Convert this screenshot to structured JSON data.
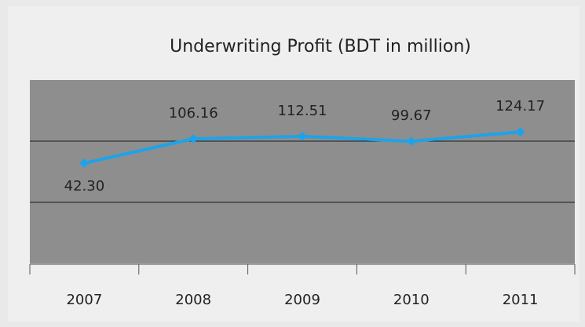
{
  "chart_data": {
    "type": "line",
    "title": "Underwriting Profit (BDT in million)",
    "categories": [
      "2007",
      "2008",
      "2009",
      "2010",
      "2011"
    ],
    "series": [
      {
        "name": "Underwriting Profit",
        "color": "#1ea3e8",
        "values": [
          42.3,
          106.16,
          112.51,
          99.67,
          124.17
        ],
        "value_labels": [
          "42.30",
          "106.16",
          "112.51",
          "99.67",
          "124.17"
        ]
      }
    ],
    "ylim": [
      -220,
      260
    ],
    "yticks": [
      -60,
      100
    ],
    "grid": true
  }
}
